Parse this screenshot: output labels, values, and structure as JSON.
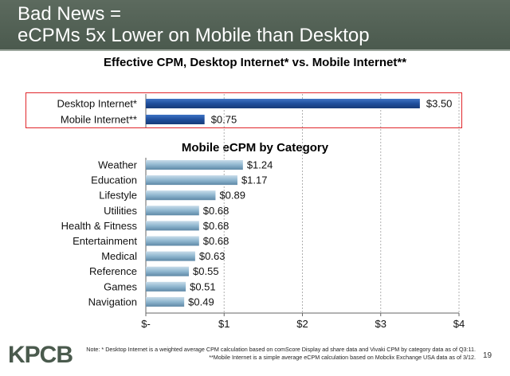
{
  "header": {
    "line1": "Bad News =",
    "line2": "eCPMs 5x Lower on Mobile than Desktop"
  },
  "colors": {
    "header_bg": "#4f5d52",
    "desktop_bar": "#1f4e9c",
    "category_bar": "#8fb6cf",
    "highlight_border": "#e0262b",
    "logo": "#4a5a4d"
  },
  "chart_data": [
    {
      "type": "bar",
      "orientation": "horizontal",
      "title": "Effective CPM, Desktop Internet* vs. Mobile Internet**",
      "categories": [
        "Desktop Internet*",
        "Mobile Internet**"
      ],
      "values": [
        3.5,
        0.75
      ],
      "data_labels": [
        "$3.50",
        "$0.75"
      ],
      "xlim": [
        0,
        4
      ],
      "grid": true
    },
    {
      "type": "bar",
      "orientation": "horizontal",
      "title": "Mobile eCPM by Category",
      "categories": [
        "Weather",
        "Education",
        "Lifestyle",
        "Utilities",
        "Health & Fitness",
        "Entertainment",
        "Medical",
        "Reference",
        "Games",
        "Navigation"
      ],
      "values": [
        1.24,
        1.17,
        0.89,
        0.68,
        0.68,
        0.68,
        0.63,
        0.55,
        0.51,
        0.49
      ],
      "data_labels": [
        "$1.24",
        "$1.17",
        "$0.89",
        "$0.68",
        "$0.68",
        "$0.68",
        "$0.63",
        "$0.55",
        "$0.51",
        "$0.49"
      ],
      "xlim": [
        0,
        4
      ],
      "x_ticks": [
        0,
        1,
        2,
        3,
        4
      ],
      "x_tick_labels": [
        "$-",
        "$1",
        "$2",
        "$3",
        "$4"
      ],
      "grid": true
    }
  ],
  "footer": {
    "logo": "KPCB",
    "note": "Note: * Desktop Internet is a weighted average CPM calculation based on comScore Display ad share data and Vivaki CPM by category data as of Q3:11. **Mobile Internet is a simple average eCPM calculation based on Mobclix Exchange USA data as of 3/12.",
    "page_number": "19"
  }
}
